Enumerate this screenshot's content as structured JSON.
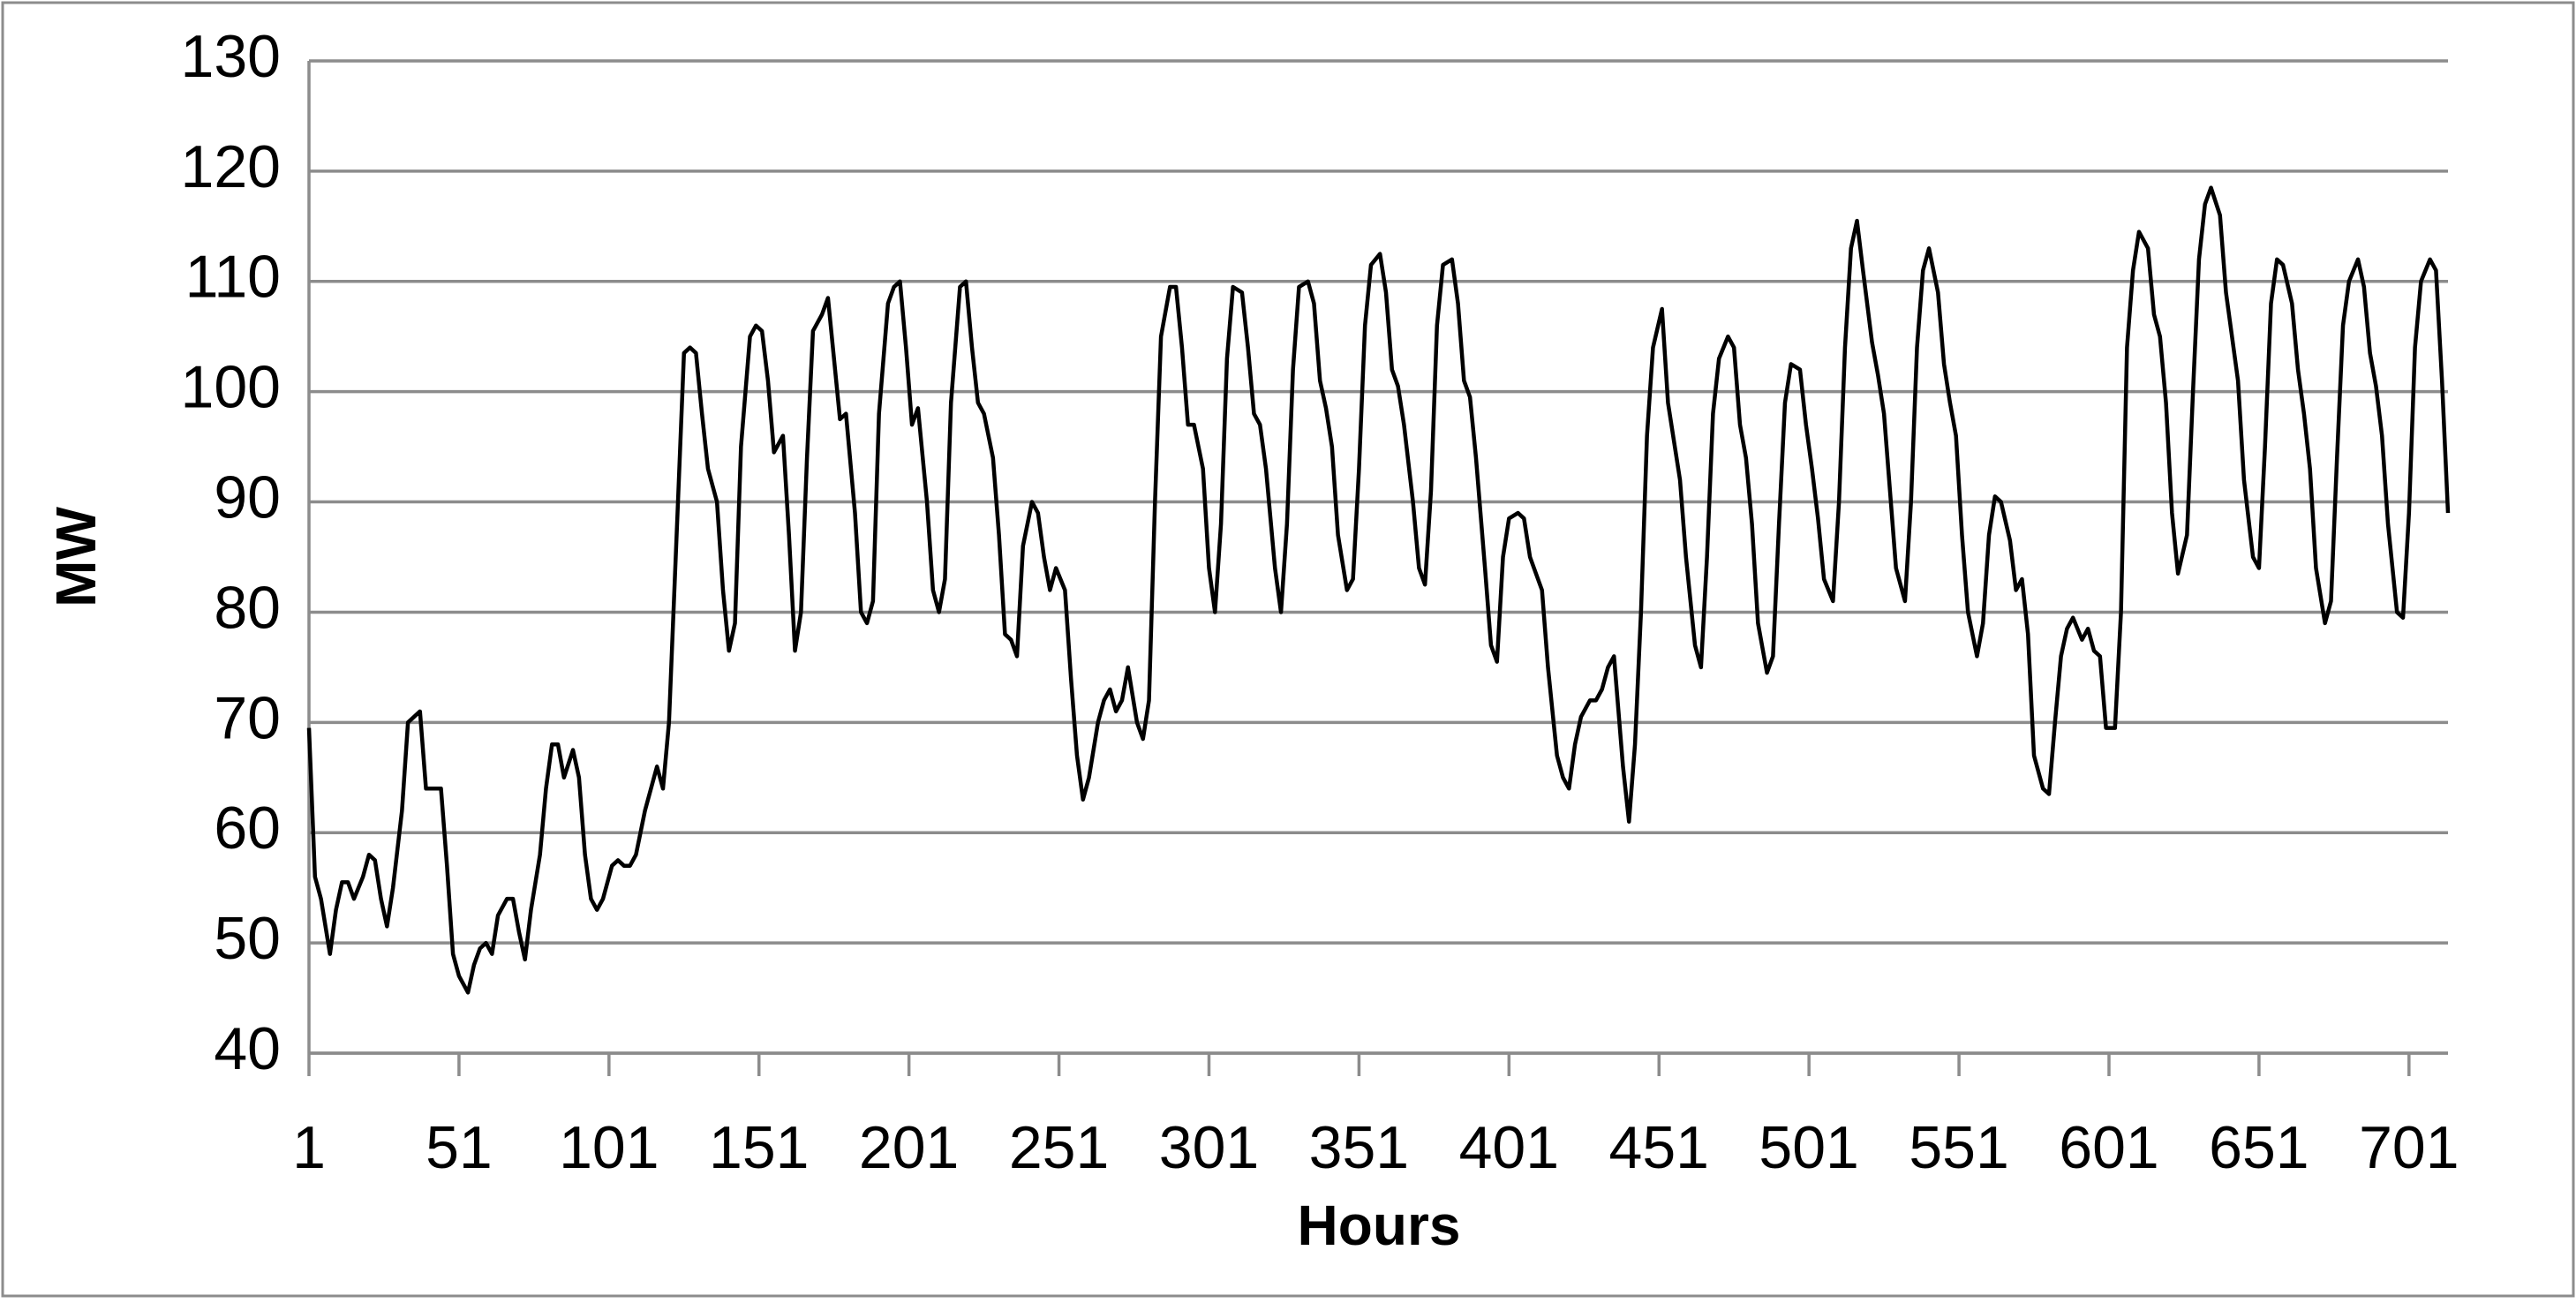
{
  "chart_data": {
    "type": "line",
    "x_label": "Hours",
    "y_label": "MW",
    "xlim": [
      1,
      714
    ],
    "xticks": [
      1,
      51,
      101,
      151,
      201,
      251,
      301,
      351,
      401,
      451,
      501,
      551,
      601,
      651,
      701
    ],
    "ylim": [
      40,
      130
    ],
    "yticks": [
      40,
      50,
      60,
      70,
      80,
      90,
      100,
      110,
      120,
      130
    ],
    "grid": true,
    "legend": false,
    "x": [
      1,
      3,
      5,
      8,
      10,
      12,
      14,
      16,
      19,
      21,
      23,
      25,
      27,
      29,
      32,
      34,
      36,
      38,
      40,
      43,
      45,
      47,
      49,
      51,
      54,
      56,
      58,
      60,
      62,
      64,
      67,
      69,
      71,
      73,
      75,
      78,
      80,
      82,
      84,
      86,
      89,
      91,
      93,
      95,
      97,
      99,
      102,
      104,
      106,
      108,
      110,
      113,
      115,
      117,
      119,
      121,
      124,
      126,
      128,
      130,
      132,
      134,
      137,
      139,
      141,
      143,
      145,
      148,
      150,
      152,
      154,
      156,
      159,
      161,
      163,
      165,
      167,
      169,
      172,
      174,
      176,
      178,
      180,
      183,
      185,
      187,
      189,
      191,
      194,
      196,
      198,
      200,
      202,
      204,
      207,
      209,
      211,
      213,
      215,
      218,
      220,
      222,
      224,
      226,
      229,
      231,
      233,
      235,
      237,
      239,
      242,
      244,
      246,
      248,
      250,
      253,
      255,
      257,
      259,
      261,
      264,
      266,
      268,
      270,
      272,
      274,
      277,
      279,
      281,
      283,
      285,
      288,
      290,
      292,
      294,
      296,
      299,
      301,
      303,
      305,
      307,
      309,
      312,
      314,
      316,
      318,
      320,
      323,
      325,
      327,
      329,
      331,
      334,
      336,
      338,
      340,
      342,
      344,
      347,
      349,
      351,
      353,
      355,
      358,
      360,
      362,
      364,
      366,
      369,
      371,
      373,
      375,
      377,
      379,
      382,
      384,
      386,
      388,
      390,
      393,
      395,
      397,
      399,
      401,
      404,
      406,
      408,
      410,
      412,
      414,
      417,
      419,
      421,
      423,
      425,
      428,
      430,
      432,
      434,
      436,
      439,
      441,
      443,
      445,
      447,
      449,
      452,
      454,
      456,
      458,
      460,
      463,
      465,
      467,
      469,
      471,
      474,
      476,
      478,
      480,
      482,
      484,
      487,
      489,
      491,
      493,
      495,
      498,
      500,
      502,
      504,
      506,
      509,
      511,
      513,
      515,
      517,
      519,
      522,
      524,
      526,
      528,
      530,
      533,
      535,
      537,
      539,
      541,
      544,
      546,
      548,
      550,
      552,
      554,
      557,
      559,
      561,
      563,
      565,
      568,
      570,
      572,
      574,
      576,
      579,
      581,
      583,
      585,
      587,
      589,
      592,
      594,
      596,
      598,
      600,
      603,
      605,
      607,
      609,
      611,
      614,
      616,
      618,
      620,
      622,
      624,
      627,
      629,
      631,
      633,
      635,
      638,
      640,
      642,
      644,
      646,
      649,
      651,
      653,
      655,
      657,
      659,
      662,
      664,
      666,
      668,
      670,
      673,
      675,
      677,
      679,
      681,
      684,
      686,
      688,
      690,
      692,
      694,
      697,
      699,
      701,
      703,
      705,
      708,
      710,
      712,
      714
    ],
    "series": [
      {
        "name": "MW",
        "color": "#000000",
        "values": [
          69.5,
          56,
          54,
          49,
          53,
          55.5,
          55.5,
          54,
          56,
          58,
          57.5,
          54,
          51.5,
          55,
          62,
          70,
          70.5,
          71,
          64,
          64,
          64,
          57,
          49,
          47,
          45.5,
          48,
          49.5,
          50,
          49,
          52.5,
          54,
          54,
          51,
          48.5,
          53,
          58,
          64,
          68,
          68,
          65,
          67.5,
          65,
          58,
          54,
          53,
          54,
          57,
          57.5,
          57,
          57,
          58,
          62,
          64,
          66,
          64,
          70,
          90,
          103.5,
          104,
          103.5,
          98,
          93,
          90,
          82,
          76.5,
          79,
          95,
          105,
          106,
          105.5,
          101,
          94.5,
          96,
          87,
          76.5,
          80,
          94,
          105.5,
          107,
          108.5,
          103,
          97.5,
          98,
          89,
          80,
          79,
          81,
          98,
          108,
          109.5,
          110,
          104,
          97,
          98.5,
          90,
          82,
          80,
          83,
          99,
          109.5,
          110,
          104,
          99,
          98,
          94,
          87,
          78,
          77.5,
          76,
          86,
          90,
          89,
          85,
          82,
          84,
          82,
          74,
          67,
          63,
          65,
          70,
          72,
          73,
          71,
          72,
          75,
          70,
          68.5,
          72,
          90,
          105,
          109.5,
          109.5,
          104,
          97,
          97,
          93,
          84,
          80,
          88,
          103,
          109.5,
          109,
          104,
          98,
          97,
          93,
          84,
          80,
          88,
          102,
          109.5,
          110,
          108,
          101,
          98.5,
          95,
          87,
          82,
          83,
          93,
          106,
          111.5,
          112.5,
          109,
          102,
          100.5,
          97,
          90,
          84,
          82.5,
          91,
          106,
          111.5,
          112,
          108,
          101,
          99.5,
          94,
          84,
          77,
          75.5,
          85,
          88.5,
          89,
          88.5,
          85,
          83.5,
          82,
          75,
          67,
          65,
          64,
          68,
          70.5,
          72,
          72,
          73,
          75,
          76,
          66,
          61,
          68,
          80,
          96,
          104,
          107.5,
          99,
          95.5,
          92,
          85,
          77,
          75,
          85,
          98,
          103,
          105,
          104,
          97,
          94,
          88,
          79,
          74.5,
          76,
          88,
          99,
          102.5,
          102,
          97,
          93,
          88.5,
          83,
          81,
          90,
          104,
          113,
          115.5,
          111,
          104.5,
          101.5,
          98,
          91,
          84,
          81,
          90,
          104,
          111,
          113,
          109,
          102.5,
          99,
          96,
          87,
          80,
          76,
          79,
          87,
          90.5,
          90,
          86.5,
          82,
          83,
          78,
          67,
          64,
          63.5,
          70,
          76,
          78.5,
          79.5,
          77.5,
          78.5,
          76.5,
          76,
          69.5,
          69.5,
          80,
          104,
          111,
          114.5,
          113,
          107,
          105,
          99,
          89,
          83.5,
          87,
          100,
          112,
          117,
          118.5,
          116,
          109,
          105,
          101,
          92,
          85,
          84,
          95,
          108,
          112,
          111.5,
          108,
          102,
          98,
          93,
          84,
          79,
          81,
          94,
          106,
          110,
          112,
          109.5,
          103.5,
          100.5,
          96,
          88,
          80,
          79.5,
          89,
          104,
          110,
          112,
          111,
          101,
          89
        ]
      }
    ]
  }
}
